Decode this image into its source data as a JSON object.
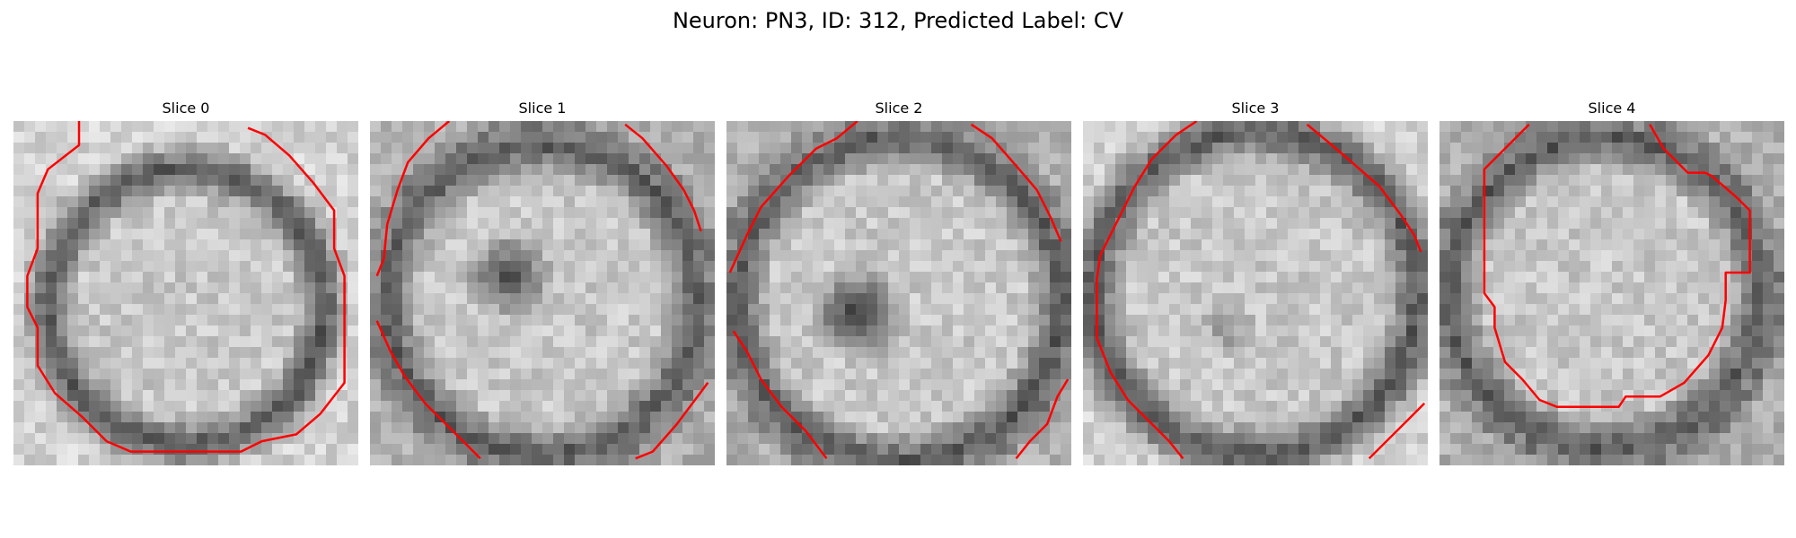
{
  "figure": {
    "title": "Neuron: PN3, ID: 312, Predicted Label: CV",
    "colors": {
      "background": "#ffffff",
      "contour": "#ff0000"
    },
    "grid": {
      "rows": 32,
      "cols": 32
    },
    "panels": [
      {
        "title": "Slice 0",
        "scene": {
          "ring_radius": 0.4,
          "ring_width": 0.09,
          "ring_center": [
            0.5,
            0.54
          ],
          "dark_blob": null,
          "background": "light"
        },
        "contour_segments": [
          [
            [
              0.19,
              0.0
            ],
            [
              0.19,
              0.07
            ],
            [
              0.1,
              0.14
            ],
            [
              0.07,
              0.21
            ],
            [
              0.07,
              0.37
            ],
            [
              0.04,
              0.45
            ],
            [
              0.04,
              0.54
            ],
            [
              0.07,
              0.6
            ],
            [
              0.07,
              0.71
            ],
            [
              0.12,
              0.79
            ],
            [
              0.2,
              0.86
            ],
            [
              0.27,
              0.93
            ],
            [
              0.34,
              0.96
            ],
            [
              0.66,
              0.96
            ],
            [
              0.72,
              0.93
            ],
            [
              0.82,
              0.91
            ],
            [
              0.89,
              0.85
            ],
            [
              0.96,
              0.76
            ],
            [
              0.96,
              0.45
            ],
            [
              0.93,
              0.37
            ],
            [
              0.93,
              0.26
            ],
            [
              0.87,
              0.18
            ],
            [
              0.8,
              0.1
            ],
            [
              0.73,
              0.04
            ],
            [
              0.68,
              0.02
            ]
          ]
        ]
      },
      {
        "title": "Slice 1",
        "scene": {
          "ring_radius": 0.45,
          "ring_width": 0.1,
          "ring_center": [
            0.5,
            0.52
          ],
          "dark_blob": {
            "center": [
              0.4,
              0.45
            ],
            "radius": 0.14,
            "strength": 0.75
          },
          "background": "dark"
        },
        "contour_segments": [
          [
            [
              0.23,
              0.0
            ],
            [
              0.17,
              0.05
            ],
            [
              0.11,
              0.12
            ],
            [
              0.08,
              0.2
            ],
            [
              0.05,
              0.3
            ],
            [
              0.04,
              0.4
            ],
            [
              0.02,
              0.45
            ]
          ],
          [
            [
              0.74,
              0.01
            ],
            [
              0.79,
              0.05
            ],
            [
              0.86,
              0.13
            ],
            [
              0.91,
              0.2
            ],
            [
              0.94,
              0.26
            ],
            [
              0.96,
              0.32
            ]
          ],
          [
            [
              0.02,
              0.58
            ],
            [
              0.06,
              0.67
            ],
            [
              0.1,
              0.74
            ],
            [
              0.16,
              0.82
            ],
            [
              0.23,
              0.89
            ],
            [
              0.29,
              0.95
            ],
            [
              0.32,
              0.98
            ]
          ],
          [
            [
              0.77,
              0.98
            ],
            [
              0.82,
              0.96
            ],
            [
              0.89,
              0.88
            ],
            [
              0.95,
              0.8
            ],
            [
              0.98,
              0.76
            ]
          ]
        ]
      },
      {
        "title": "Slice 2",
        "scene": {
          "ring_radius": 0.47,
          "ring_width": 0.1,
          "ring_center": [
            0.5,
            0.52
          ],
          "dark_blob": {
            "center": [
              0.38,
              0.56
            ],
            "radius": 0.15,
            "strength": 0.85
          },
          "background": "dark"
        },
        "contour_segments": [
          [
            [
              0.38,
              0.0
            ],
            [
              0.32,
              0.05
            ],
            [
              0.26,
              0.08
            ],
            [
              0.18,
              0.16
            ],
            [
              0.1,
              0.25
            ],
            [
              0.06,
              0.33
            ],
            [
              0.01,
              0.44
            ]
          ],
          [
            [
              0.71,
              0.01
            ],
            [
              0.77,
              0.05
            ],
            [
              0.84,
              0.13
            ],
            [
              0.9,
              0.2
            ],
            [
              0.94,
              0.28
            ],
            [
              0.97,
              0.35
            ]
          ],
          [
            [
              0.02,
              0.61
            ],
            [
              0.06,
              0.67
            ],
            [
              0.1,
              0.75
            ],
            [
              0.16,
              0.83
            ],
            [
              0.23,
              0.9
            ],
            [
              0.29,
              0.98
            ]
          ],
          [
            [
              0.84,
              0.98
            ],
            [
              0.88,
              0.93
            ],
            [
              0.93,
              0.88
            ],
            [
              0.96,
              0.8
            ],
            [
              0.99,
              0.75
            ]
          ]
        ]
      },
      {
        "title": "Slice 3",
        "scene": {
          "ring_radius": 0.47,
          "ring_width": 0.1,
          "ring_center": [
            0.5,
            0.5
          ],
          "dark_blob": {
            "center": [
              0.42,
              0.6
            ],
            "radius": 0.09,
            "strength": 0.35
          },
          "background": "light"
        },
        "contour_segments": [
          [
            [
              0.33,
              0.0
            ],
            [
              0.27,
              0.04
            ],
            [
              0.2,
              0.11
            ],
            [
              0.15,
              0.19
            ],
            [
              0.11,
              0.27
            ],
            [
              0.08,
              0.33
            ],
            [
              0.05,
              0.39
            ],
            [
              0.04,
              0.46
            ],
            [
              0.04,
              0.63
            ],
            [
              0.08,
              0.73
            ],
            [
              0.13,
              0.81
            ],
            [
              0.19,
              0.87
            ],
            [
              0.25,
              0.93
            ],
            [
              0.29,
              0.98
            ]
          ],
          [
            [
              0.65,
              0.01
            ],
            [
              0.71,
              0.06
            ],
            [
              0.78,
              0.12
            ],
            [
              0.86,
              0.19
            ],
            [
              0.92,
              0.27
            ],
            [
              0.96,
              0.33
            ],
            [
              0.98,
              0.38
            ]
          ],
          [
            [
              0.83,
              0.98
            ],
            [
              0.88,
              0.93
            ],
            [
              0.94,
              0.87
            ],
            [
              0.99,
              0.82
            ]
          ]
        ]
      },
      {
        "title": "Slice 4",
        "scene": {
          "ring_radius": 0.45,
          "ring_width": 0.1,
          "ring_center": [
            0.48,
            0.5
          ],
          "dark_blob": null,
          "background": "dark"
        },
        "contour_segments": [
          [
            [
              0.26,
              0.01
            ],
            [
              0.2,
              0.07
            ],
            [
              0.13,
              0.14
            ],
            [
              0.13,
              0.5
            ],
            [
              0.16,
              0.54
            ],
            [
              0.16,
              0.6
            ],
            [
              0.19,
              0.7
            ],
            [
              0.24,
              0.75
            ],
            [
              0.29,
              0.81
            ],
            [
              0.34,
              0.83
            ],
            [
              0.52,
              0.83
            ],
            [
              0.54,
              0.8
            ],
            [
              0.64,
              0.8
            ],
            [
              0.71,
              0.76
            ],
            [
              0.78,
              0.68
            ],
            [
              0.82,
              0.6
            ],
            [
              0.83,
              0.52
            ],
            [
              0.83,
              0.44
            ],
            [
              0.9,
              0.44
            ],
            [
              0.9,
              0.26
            ],
            [
              0.86,
              0.22
            ],
            [
              0.79,
              0.16
            ],
            [
              0.77,
              0.15
            ],
            [
              0.72,
              0.15
            ],
            [
              0.65,
              0.08
            ],
            [
              0.61,
              0.01
            ]
          ]
        ]
      }
    ]
  }
}
